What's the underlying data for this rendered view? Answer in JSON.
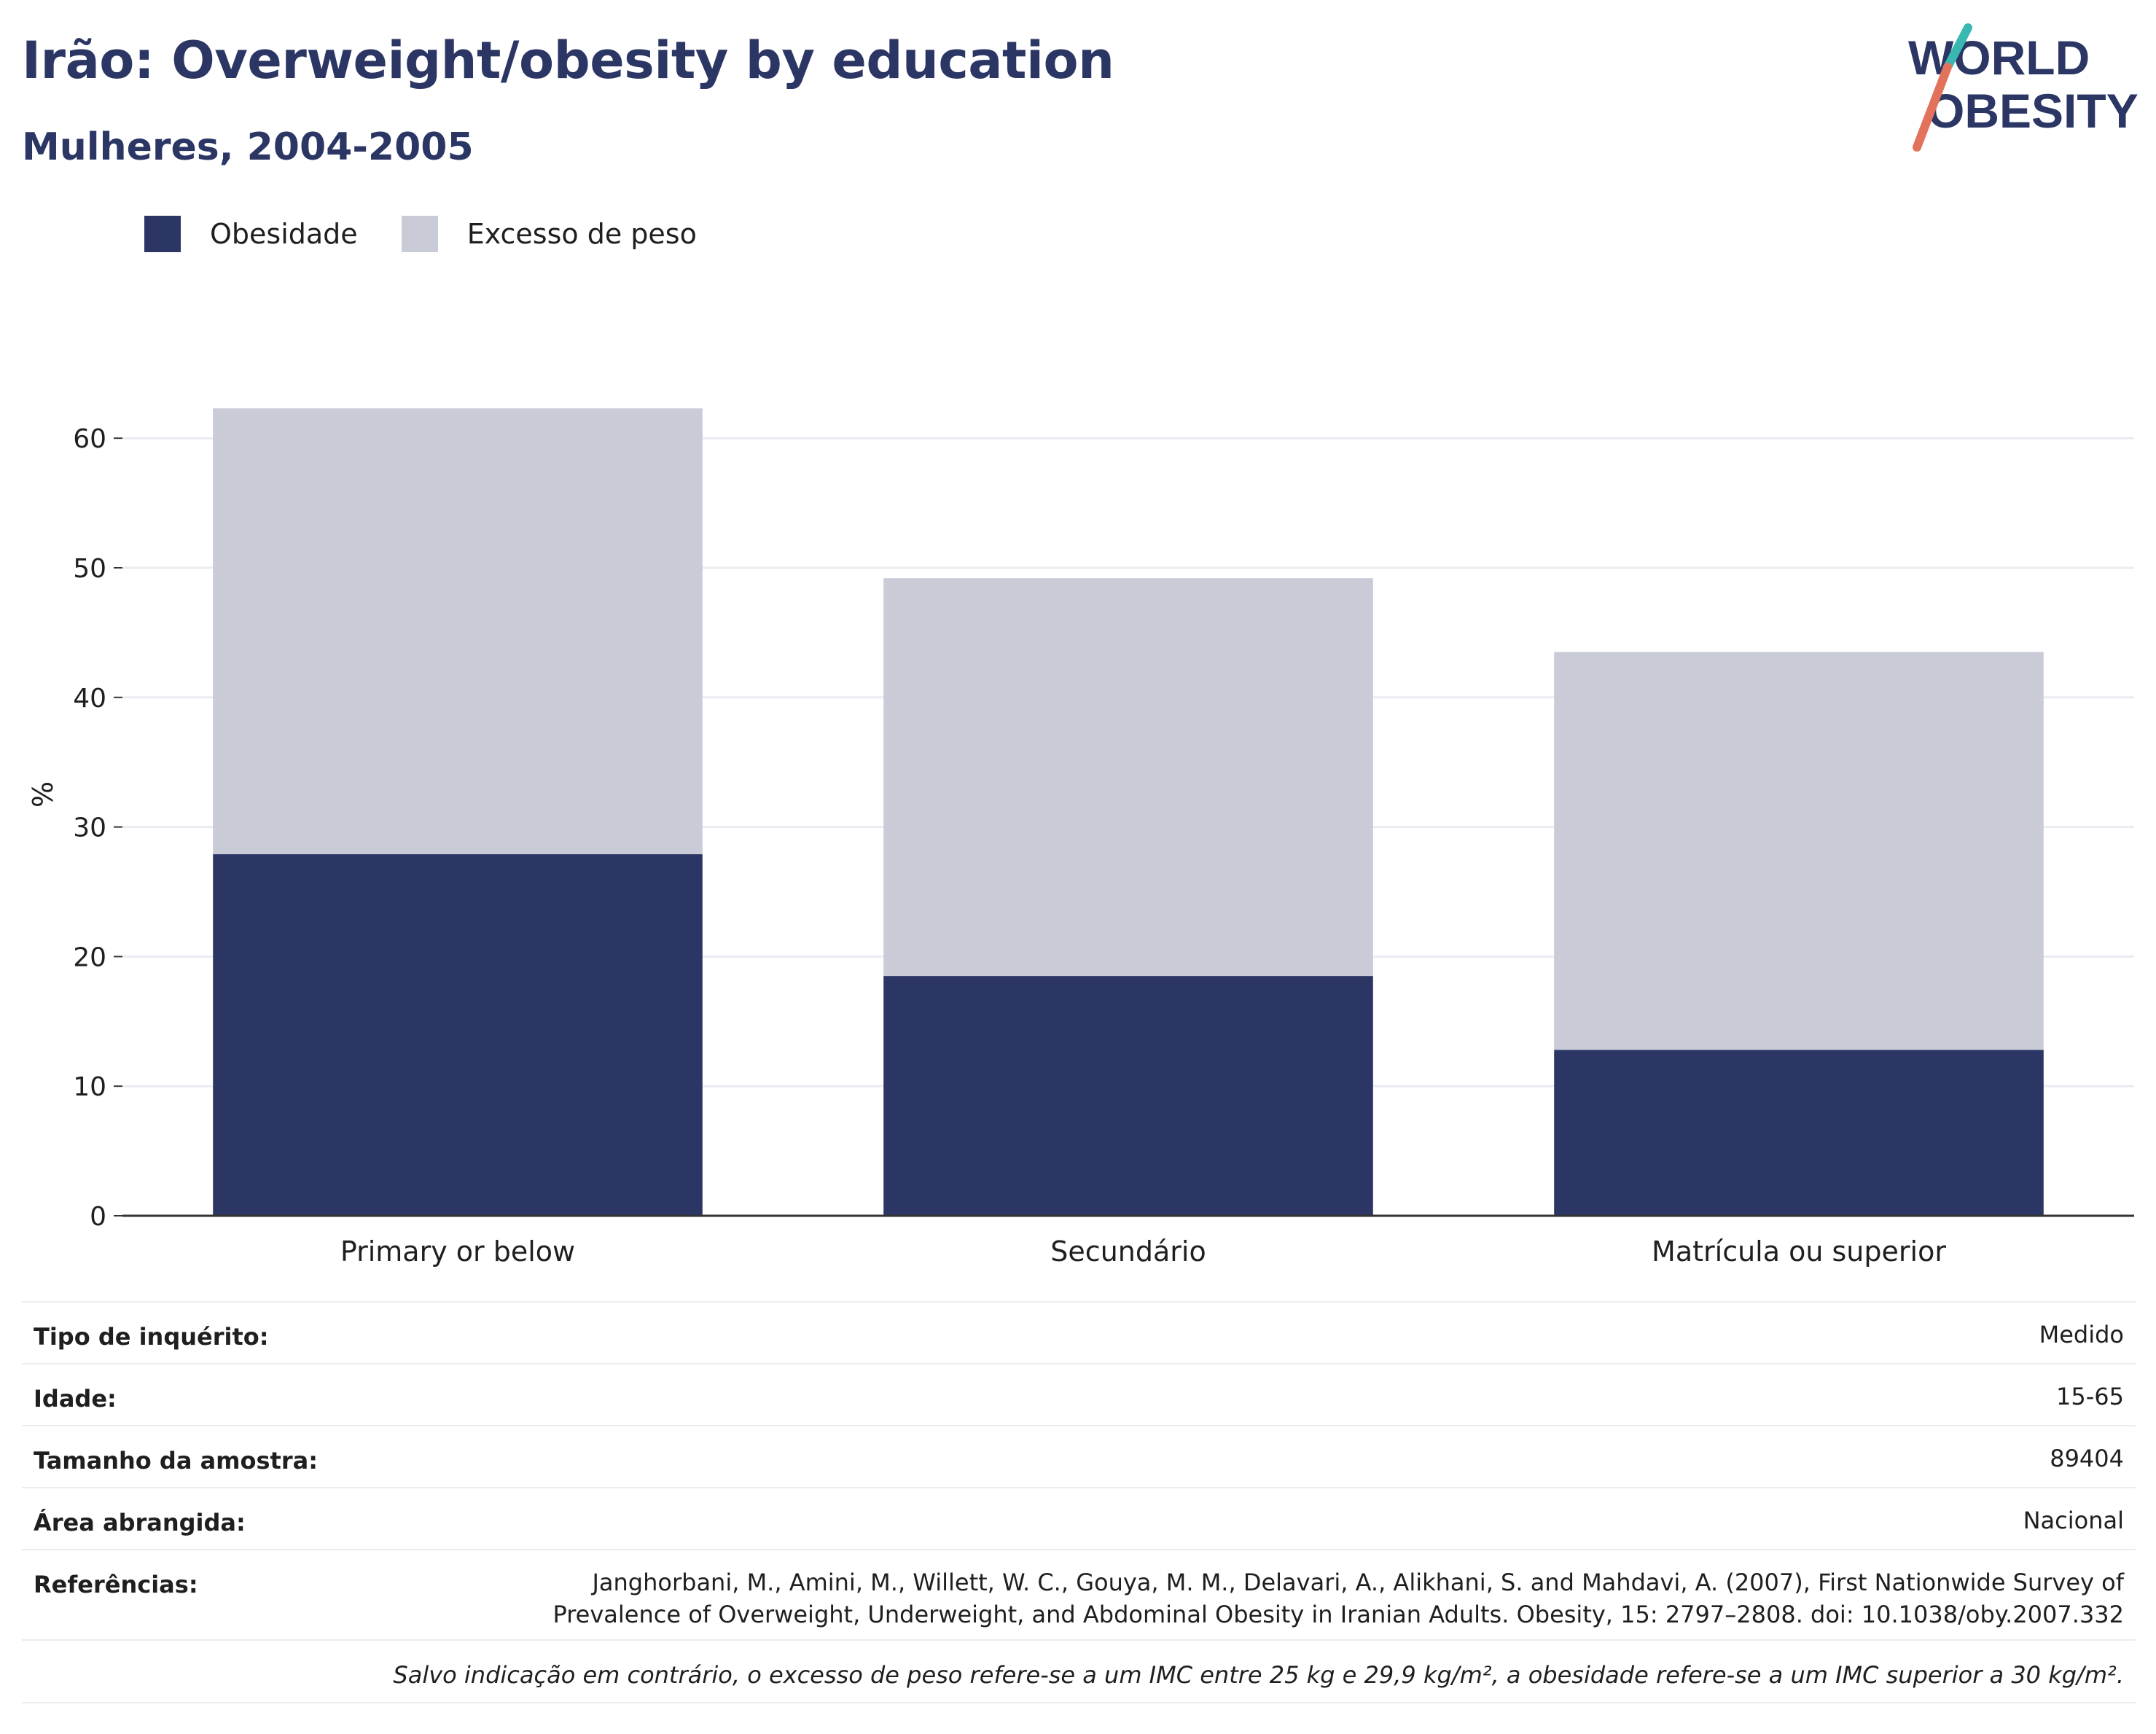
{
  "header": {
    "title": "Irão: Overweight/obesity by education",
    "subtitle": "Mulheres, 2004-2005"
  },
  "logo": {
    "line1": "WORLD",
    "line2": "OBESITY",
    "name": "world-obesity-logo"
  },
  "colors": {
    "obesity": "#2b3664",
    "overweight": "#c9cbd7",
    "title": "#2b3664",
    "logo_teal": "#38b8b1",
    "logo_coral": "#e2725b",
    "grid": "#e9ecf1",
    "axis": "#333333"
  },
  "legend": [
    {
      "label": "Obesidade",
      "color": "#2b3664"
    },
    {
      "label": "Excesso de peso",
      "color": "#c9cbd7"
    }
  ],
  "chart_data": {
    "type": "bar",
    "stacked": true,
    "title": "Irão: Overweight/obesity by education",
    "subtitle": "Mulheres, 2004-2005",
    "categories": [
      "Primary or below",
      "Secundário",
      "Matrícula ou superior"
    ],
    "series": [
      {
        "name": "Obesidade",
        "values": [
          27.9,
          18.5,
          12.8
        ],
        "color": "#2b3664"
      },
      {
        "name": "Excesso de peso",
        "values": [
          34.4,
          30.7,
          30.7
        ],
        "color": "#c9cbd7"
      }
    ],
    "xlabel": "",
    "ylabel": "%",
    "ylim": [
      0,
      64
    ],
    "yticks": [
      0,
      10,
      20,
      30,
      40,
      50,
      60
    ],
    "grid": true,
    "legend_position": "top-left"
  },
  "meta": {
    "rows": [
      {
        "label": "Tipo de inquérito:",
        "value": "Medido"
      },
      {
        "label": "Idade:",
        "value": "15-65"
      },
      {
        "label": "Tamanho da amostra:",
        "value": "89404"
      },
      {
        "label": "Área abrangida:",
        "value": "Nacional"
      }
    ],
    "references_label": "Referências:",
    "references_line1": "Janghorbani, M., Amini, M., Willett, W. C., Gouya, M. M., Delavari, A., Alikhani, S. and Mahdavi, A. (2007), First Nationwide Survey of",
    "references_line2": "Prevalence of Overweight, Underweight, and Abdominal Obesity in Iranian Adults. Obesity, 15: 2797–2808. doi: 10.1038/oby.2007.332",
    "note": "Salvo indicação em contrário, o excesso de peso refere-se a um IMC entre 25 kg e 29,9 kg/m², a obesidade refere-se a um IMC superior a 30 kg/m²."
  }
}
